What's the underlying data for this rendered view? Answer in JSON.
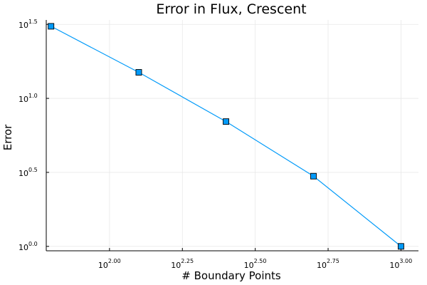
{
  "chart_data": {
    "type": "line",
    "title": "Error in Flux, Crescent",
    "xlabel": "# Boundary Points",
    "ylabel": "Error",
    "xscale": "log10",
    "yscale": "log10",
    "xlim_log10": [
      1.783,
      3.06
    ],
    "ylim_log10": [
      -0.03,
      1.53
    ],
    "x_ticks": [
      {
        "base": "10",
        "exp": "2.00",
        "log10": 2.0
      },
      {
        "base": "10",
        "exp": "2.25",
        "log10": 2.25
      },
      {
        "base": "10",
        "exp": "2.50",
        "log10": 2.5
      },
      {
        "base": "10",
        "exp": "2.75",
        "log10": 2.75
      },
      {
        "base": "10",
        "exp": "3.00",
        "log10": 3.0
      }
    ],
    "y_ticks": [
      {
        "base": "10",
        "exp": "0.0",
        "log10": 0.0
      },
      {
        "base": "10",
        "exp": "0.5",
        "log10": 0.5
      },
      {
        "base": "10",
        "exp": "1.0",
        "log10": 1.0
      },
      {
        "base": "10",
        "exp": "1.5",
        "log10": 1.5
      }
    ],
    "grid": true,
    "legend": "none",
    "series": [
      {
        "color": "#009af9",
        "marker": "square",
        "x": [
          63,
          126,
          251,
          501,
          1000
        ],
        "y": [
          30.7,
          15.0,
          6.97,
          2.98,
          1.0
        ]
      }
    ]
  }
}
